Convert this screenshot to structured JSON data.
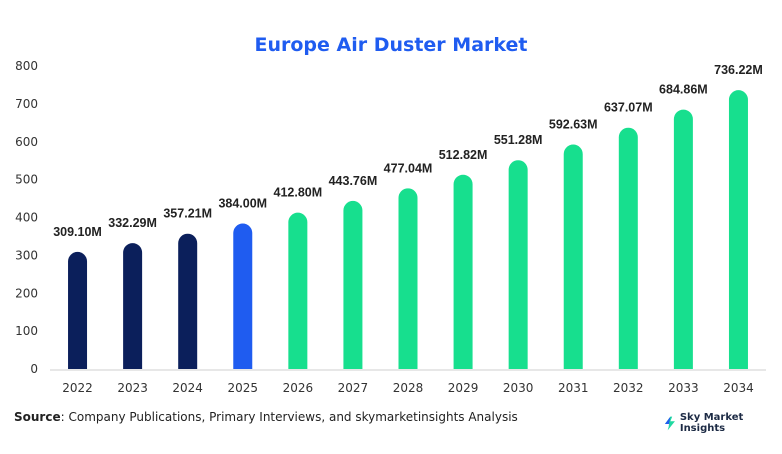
{
  "chart_data": {
    "type": "bar",
    "title": "Europe Air Duster Market",
    "xlabel": "",
    "ylabel": "",
    "ylim": [
      0,
      800
    ],
    "yticks": [
      0,
      100,
      200,
      300,
      400,
      500,
      600,
      700,
      800
    ],
    "categories": [
      "2022",
      "2023",
      "2024",
      "2025",
      "2026",
      "2027",
      "2028",
      "2029",
      "2030",
      "2031",
      "2032",
      "2033",
      "2034"
    ],
    "values": [
      309.1,
      332.29,
      357.21,
      384.0,
      412.8,
      443.76,
      477.04,
      512.82,
      551.28,
      592.63,
      637.07,
      684.86,
      736.22
    ],
    "data_labels": [
      "309.10M",
      "332.29M",
      "357.21M",
      "384.00M",
      "412.80M",
      "443.76M",
      "477.04M",
      "512.82M",
      "551.28M",
      "592.63M",
      "637.07M",
      "684.86M",
      "736.22M"
    ],
    "bar_colors": [
      "#0b1f5b",
      "#0b1f5b",
      "#0b1f5b",
      "#1f5cf0",
      "#17df8e",
      "#17df8e",
      "#17df8e",
      "#17df8e",
      "#17df8e",
      "#17df8e",
      "#17df8e",
      "#17df8e",
      "#17df8e"
    ],
    "grid": false,
    "legend": "none"
  },
  "footer": {
    "source_label": "Source",
    "source_text": ": Company Publications, Primary Interviews, and skymarketinsights Analysis",
    "brand_name": "Sky Market Insights",
    "brand_icon": "lightning-bolt-icon"
  },
  "colors": {
    "title": "#1f5cf0",
    "historical": "#0b1f5b",
    "base_year": "#1f5cf0",
    "forecast": "#17df8e"
  }
}
